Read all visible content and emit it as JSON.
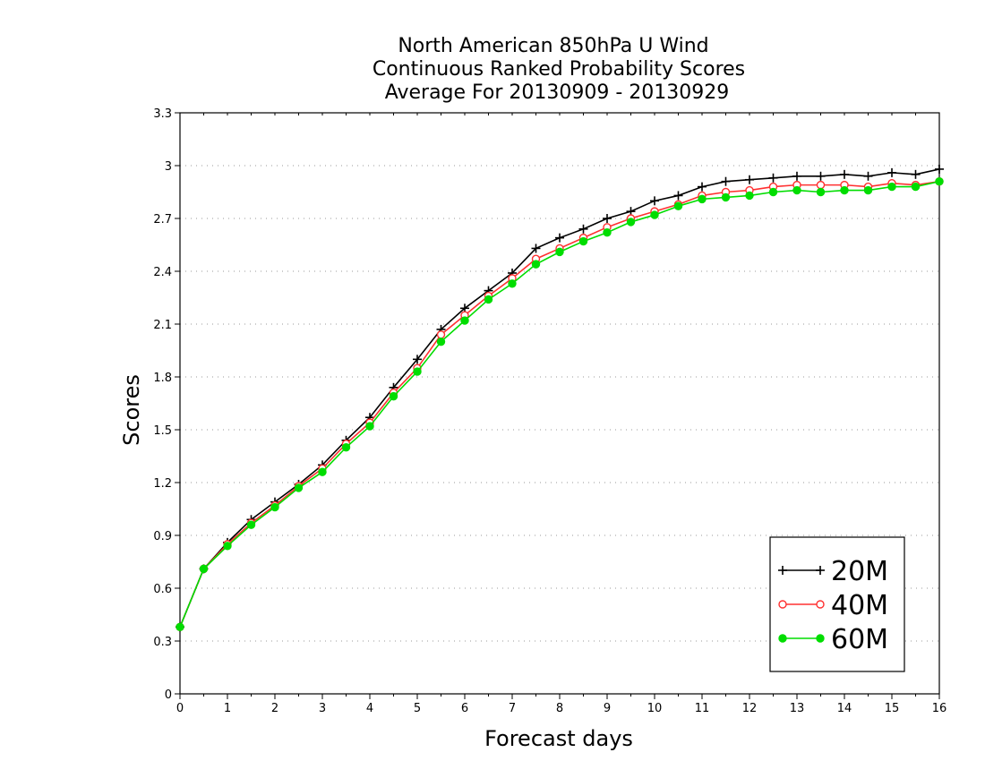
{
  "chart_data": {
    "type": "line",
    "title": [
      "North American 850hPa U Wind",
      "Continuous Ranked Probability Scores",
      "Average For 20130909 - 20130929"
    ],
    "xlabel": "Forecast days",
    "ylabel": "Scores",
    "xlim": [
      0,
      16
    ],
    "ylim": [
      0,
      3.3
    ],
    "xticks": [
      "0",
      "1",
      "2",
      "3",
      "4",
      "5",
      "6",
      "7",
      "8",
      "9",
      "10",
      "11",
      "12",
      "13",
      "14",
      "15",
      "16"
    ],
    "yticks": [
      "0",
      "0.3",
      "0.6",
      "0.9",
      "1.2",
      "1.5",
      "1.8",
      "2.1",
      "2.4",
      "2.7",
      "3",
      "3.3"
    ],
    "grid": "horizontal dotted",
    "legend_position": "bottom-right",
    "x": [
      0,
      0.5,
      1,
      1.5,
      2,
      2.5,
      3,
      3.5,
      4,
      4.5,
      5,
      5.5,
      6,
      6.5,
      7,
      7.5,
      8,
      8.5,
      9,
      9.5,
      10,
      10.5,
      11,
      11.5,
      12,
      12.5,
      13,
      13.5,
      14,
      14.5,
      15,
      15.5,
      16
    ],
    "series": [
      {
        "name": "20M",
        "color": "#000000",
        "marker": "plus",
        "values": [
          0.38,
          0.71,
          0.86,
          0.99,
          1.09,
          1.19,
          1.3,
          1.44,
          1.57,
          1.74,
          1.9,
          2.07,
          2.19,
          2.29,
          2.39,
          2.53,
          2.59,
          2.64,
          2.7,
          2.74,
          2.8,
          2.83,
          2.88,
          2.91,
          2.92,
          2.93,
          2.94,
          2.94,
          2.95,
          2.94,
          2.96,
          2.95,
          2.98
        ]
      },
      {
        "name": "40M",
        "color": "#ff3030",
        "marker": "open-circle",
        "values": [
          0.38,
          0.71,
          0.85,
          0.97,
          1.07,
          1.18,
          1.28,
          1.42,
          1.54,
          1.71,
          1.85,
          2.04,
          2.15,
          2.26,
          2.36,
          2.47,
          2.53,
          2.59,
          2.65,
          2.7,
          2.74,
          2.78,
          2.83,
          2.85,
          2.86,
          2.88,
          2.89,
          2.89,
          2.89,
          2.88,
          2.9,
          2.89,
          2.91
        ]
      },
      {
        "name": "60M",
        "color": "#00dd00",
        "marker": "filled-circle",
        "values": [
          0.38,
          0.71,
          0.84,
          0.96,
          1.06,
          1.17,
          1.26,
          1.4,
          1.52,
          1.69,
          1.83,
          2.0,
          2.12,
          2.24,
          2.33,
          2.44,
          2.51,
          2.57,
          2.62,
          2.68,
          2.72,
          2.77,
          2.81,
          2.82,
          2.83,
          2.85,
          2.86,
          2.85,
          2.86,
          2.86,
          2.88,
          2.88,
          2.91
        ]
      }
    ]
  }
}
